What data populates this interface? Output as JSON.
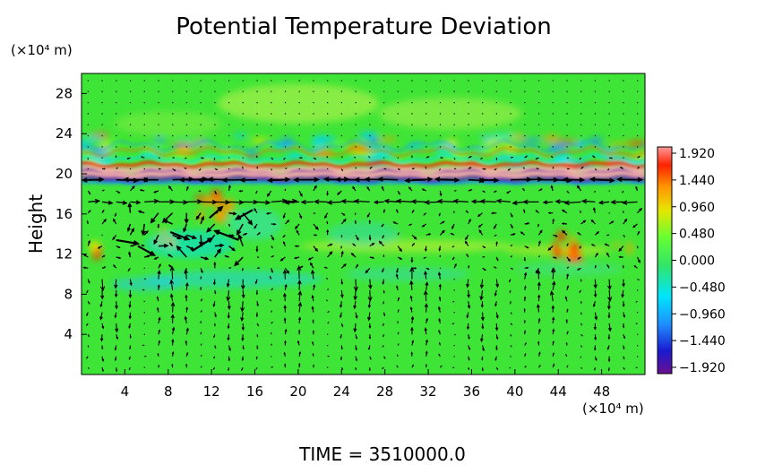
{
  "chart_data": {
    "type": "heatmap",
    "title": "Potential Temperature Deviation",
    "ylabel": "Height",
    "xunit": "(×10⁴ m)",
    "yunit": "(×10⁴ m)",
    "xlim": [
      0,
      52
    ],
    "ylim": [
      0,
      30
    ],
    "xticks": [
      4,
      8,
      12,
      16,
      20,
      24,
      28,
      32,
      36,
      40,
      44,
      48
    ],
    "yticks": [
      4,
      8,
      12,
      16,
      20,
      24,
      28
    ],
    "colorbar": {
      "ticks": [
        "1.920",
        "1.440",
        "0.960",
        "0.480",
        "0.000",
        "−0.480",
        "−0.960",
        "−1.440",
        "−1.920"
      ],
      "range": [
        -1.92,
        1.92
      ],
      "colors": [
        "#6a0f8e",
        "#1a1ad0",
        "#1e90ff",
        "#00e5ff",
        "#33e566",
        "#66ff33",
        "#e6e600",
        "#ff9900",
        "#ff2200",
        "#ff9999"
      ]
    },
    "footer": "TIME  =  3510000.0"
  }
}
